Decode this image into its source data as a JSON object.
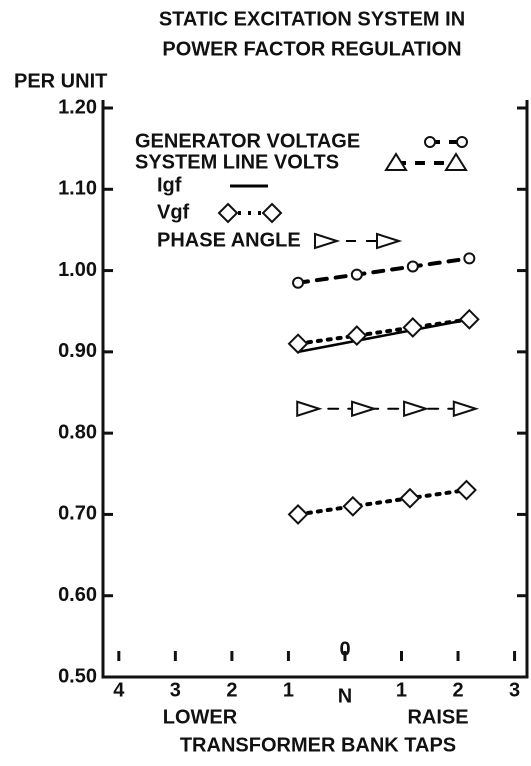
{
  "chart_data": {
    "type": "line",
    "title": [
      "STATIC EXCITATION SYSTEM IN",
      "POWER FACTOR REGULATION"
    ],
    "ylabel": "PER UNIT",
    "xlabel": "TRANSFORMER BANK TAPS",
    "annotations": [
      "0",
      "LOWER",
      "RAISE"
    ],
    "xlim": [
      -4.28,
      3.22
    ],
    "xticks": [
      {
        "value": -4,
        "label": "4"
      },
      {
        "value": -3,
        "label": "3"
      },
      {
        "value": -2,
        "label": "2"
      },
      {
        "value": -1,
        "label": "1"
      },
      {
        "value": 0,
        "label": "N"
      },
      1,
      2,
      3
    ],
    "ylim": [
      0.5,
      1.2
    ],
    "yticks": [
      {
        "value": 0.5,
        "label": "0.50"
      },
      {
        "value": 0.6,
        "label": "0.60"
      },
      {
        "value": 0.7,
        "label": "0.70"
      },
      {
        "value": 0.8,
        "label": "0.80"
      },
      {
        "value": 0.9,
        "label": "0.90"
      },
      {
        "value": 1.0,
        "label": "1.00"
      },
      {
        "value": 1.1,
        "label": "1.10"
      },
      {
        "value": 1.2,
        "label": "1.20"
      }
    ],
    "series": [
      {
        "name": "GENERATOR VOLTAGE",
        "color": "#000000",
        "marker": "circle",
        "line": "dashed",
        "x": [
          -0.83,
          0.21,
          1.2,
          2.2
        ],
        "values": [
          0.985,
          0.995,
          1.005,
          1.015
        ]
      },
      {
        "name": "SYSTEM LINE VOLTS",
        "color": "#000000",
        "marker": "triangle-up",
        "line": "dashed",
        "x": [],
        "values": []
      },
      {
        "name": "Igf",
        "color": "#000000",
        "marker": "none",
        "line": "solid",
        "x": [
          -0.83,
          2.2
        ],
        "values": [
          0.9,
          0.94
        ]
      },
      {
        "name": "Vgf",
        "color": "#000000",
        "marker": "diamond",
        "line": "dotted",
        "x": [
          -0.83,
          0.21,
          1.2,
          2.2,
          null,
          -0.83,
          0.14,
          1.15,
          2.15
        ],
        "values": [
          0.91,
          0.92,
          0.93,
          0.94,
          null,
          0.7,
          0.71,
          0.72,
          0.73
        ]
      },
      {
        "name": "PHASE ANGLE",
        "color": "#000000",
        "marker": "triangle-right",
        "line": "dashed-thin",
        "x": [
          -0.65,
          0.32,
          1.24,
          2.12
        ],
        "values": [
          0.83,
          0.83,
          0.83,
          0.83
        ]
      }
    ]
  }
}
